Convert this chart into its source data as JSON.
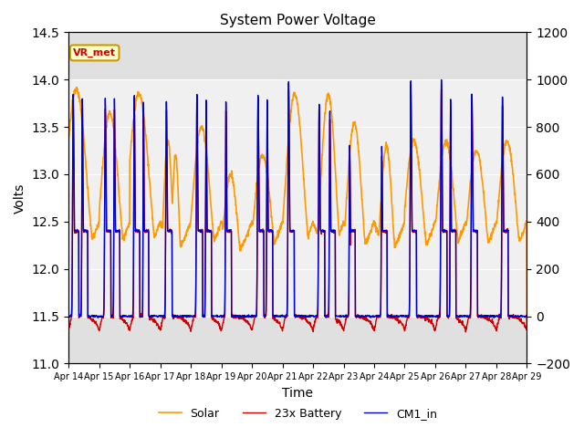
{
  "title": "System Power Voltage",
  "xlabel": "Time",
  "ylabel_left": "Volts",
  "ylabel_right": "",
  "xlim_days": [
    0,
    15
  ],
  "ylim_left": [
    11.0,
    14.5
  ],
  "ylim_right": [
    -200,
    1200
  ],
  "x_tick_labels": [
    "Apr 14",
    "Apr 15",
    "Apr 16",
    "Apr 17",
    "Apr 18",
    "Apr 19",
    "Apr 20",
    "Apr 21",
    "Apr 22",
    "Apr 23",
    "Apr 24",
    "Apr 25",
    "Apr 26",
    "Apr 27",
    "Apr 28",
    "Apr 29"
  ],
  "shading_ylim": [
    11.5,
    14.0
  ],
  "vr_met_label": "VR_met",
  "vr_met_color": "#cc0000",
  "vr_met_bg": "#ffffcc",
  "vr_met_border": "#cc9900",
  "line_colors": {
    "battery": "#cc0000",
    "solar": "#ff9900",
    "cm1": "#0000cc"
  },
  "legend_labels": [
    "23x Battery",
    "Solar",
    "CM1_in"
  ],
  "plot_bg": "#e0e0e0"
}
